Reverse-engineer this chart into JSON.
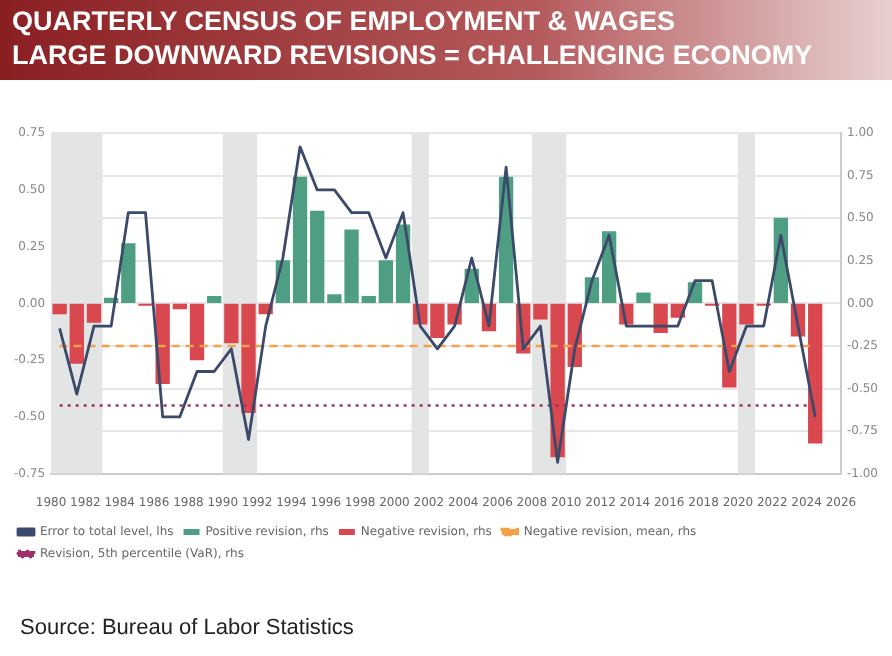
{
  "chart_data": {
    "type": "bar",
    "title": "QUARTERLY CENSUS OF EMPLOYMENT & WAGES",
    "subtitle": "LARGE DOWNWARD REVISIONS = CHALLENGING ECONOMY",
    "annotations": [
      "Source: Bureau of Labor Statistics"
    ],
    "x": [
      1980.5,
      1981.5,
      1982.5,
      1983.5,
      1984.5,
      1985.5,
      1986.5,
      1987.5,
      1988.5,
      1989.5,
      1990.5,
      1991.5,
      1992.5,
      1993.5,
      1994.5,
      1995.5,
      1996.5,
      1997.5,
      1998.5,
      1999.5,
      2000.5,
      2001.5,
      2002.5,
      2003.5,
      2004.5,
      2005.5,
      2006.5,
      2007.5,
      2008.5,
      2009.5,
      2010.5,
      2011.5,
      2012.5,
      2013.5,
      2014.5,
      2015.5,
      2016.5,
      2017.5,
      2018.5,
      2019.5,
      2020.5,
      2021.5,
      2022.5,
      2023.5,
      2024.5
    ],
    "series": [
      {
        "name": "Error to total level, lhs",
        "type": "line",
        "color": "#3b4a6b",
        "values": [
          -0.11,
          -0.4,
          -0.1,
          -0.1,
          0.4,
          0.4,
          -0.5,
          -0.5,
          -0.3,
          -0.3,
          -0.2,
          -0.6,
          -0.1,
          0.2,
          0.69,
          0.5,
          0.5,
          0.4,
          0.4,
          0.2,
          0.4,
          -0.1,
          -0.2,
          -0.1,
          0.2,
          -0.1,
          0.6,
          -0.2,
          -0.1,
          -0.7,
          -0.2,
          0.1,
          0.3,
          -0.1,
          -0.1,
          -0.1,
          -0.1,
          0.1,
          0.1,
          -0.3,
          -0.1,
          -0.1,
          0.3,
          -0.1,
          -0.5
        ]
      },
      {
        "name": "Positive revision, rhs",
        "axis": "y2",
        "color": "#4e9e84",
        "values": [
          null,
          null,
          null,
          0.03,
          0.35,
          null,
          null,
          null,
          null,
          0.04,
          null,
          null,
          null,
          0.25,
          0.74,
          0.54,
          0.05,
          0.43,
          0.04,
          0.25,
          0.46,
          null,
          null,
          null,
          0.2,
          null,
          0.74,
          null,
          null,
          null,
          null,
          0.15,
          0.42,
          null,
          0.06,
          null,
          null,
          0.12,
          null,
          null,
          null,
          null,
          0.5,
          null,
          null
        ]
      },
      {
        "name": "Negative revision, rhs",
        "axis": "y2",
        "color": "#d9474f",
        "values": [
          -0.06,
          -0.35,
          -0.11,
          null,
          null,
          -0.01,
          -0.47,
          -0.03,
          -0.33,
          null,
          -0.23,
          -0.64,
          -0.06,
          null,
          null,
          null,
          null,
          null,
          null,
          null,
          null,
          -0.12,
          -0.2,
          -0.12,
          null,
          -0.16,
          null,
          -0.29,
          -0.09,
          -0.9,
          -0.37,
          null,
          null,
          -0.12,
          null,
          -0.17,
          -0.08,
          null,
          -0.01,
          -0.49,
          -0.12,
          -0.01,
          null,
          -0.19,
          -0.82
        ]
      }
    ],
    "xlim": [
      1980,
      2026
    ],
    "xticks": [
      1980,
      1982,
      1984,
      1986,
      1988,
      1990,
      1992,
      1994,
      1996,
      1998,
      2000,
      2002,
      2004,
      2006,
      2008,
      2010,
      2012,
      2014,
      2016,
      2018,
      2020,
      2022,
      2024,
      2026
    ],
    "ylim": [
      -0.75,
      0.75
    ],
    "yticks": [
      {
        "value": -0.75,
        "label": "-0.75"
      },
      {
        "value": -0.5,
        "label": "-0.50"
      },
      {
        "value": -0.25,
        "label": "-0.25"
      },
      {
        "value": 0,
        "label": "0.00"
      },
      {
        "value": 0.25,
        "label": "0.25"
      },
      {
        "value": 0.5,
        "label": "0.50"
      },
      {
        "value": 0.75,
        "label": "0.75"
      }
    ],
    "y2lim": [
      -1,
      1
    ],
    "y2ticks": [
      {
        "value": -1,
        "label": "-1.00"
      },
      {
        "value": -0.75,
        "label": "-0.75"
      },
      {
        "value": -0.5,
        "label": "-0.50"
      },
      {
        "value": -0.25,
        "label": "-0.25"
      },
      {
        "value": 0,
        "label": "0.00"
      },
      {
        "value": 0.25,
        "label": "0.25"
      },
      {
        "value": 0.5,
        "label": "0.50"
      },
      {
        "value": 0.75,
        "label": "0.75"
      },
      {
        "value": 1,
        "label": "1.00"
      }
    ],
    "ref_lines": [
      {
        "axis": "y2",
        "value": -0.25,
        "label": "Negative revision, mean, rhs",
        "color": "#f5a04a",
        "line_style": "dashed"
      },
      {
        "axis": "y2",
        "value": -0.6,
        "label": "Revision, 5th percentile (VaR), rhs",
        "color": "#a0306a",
        "line_style": "dotted"
      }
    ],
    "bands": [
      {
        "axis": "x",
        "from": 1980,
        "to": 1983,
        "color": "#e3e4e4"
      },
      {
        "axis": "x",
        "from": 1990,
        "to": 1992,
        "color": "#e3e4e4"
      },
      {
        "axis": "x",
        "from": 2001,
        "to": 2002,
        "color": "#e3e4e4"
      },
      {
        "axis": "x",
        "from": 2008,
        "to": 2010,
        "color": "#e3e4e4"
      },
      {
        "axis": "x",
        "from": 2020,
        "to": 2021,
        "color": "#e3e4e4"
      }
    ],
    "grid": "y",
    "legend": "bottom"
  }
}
